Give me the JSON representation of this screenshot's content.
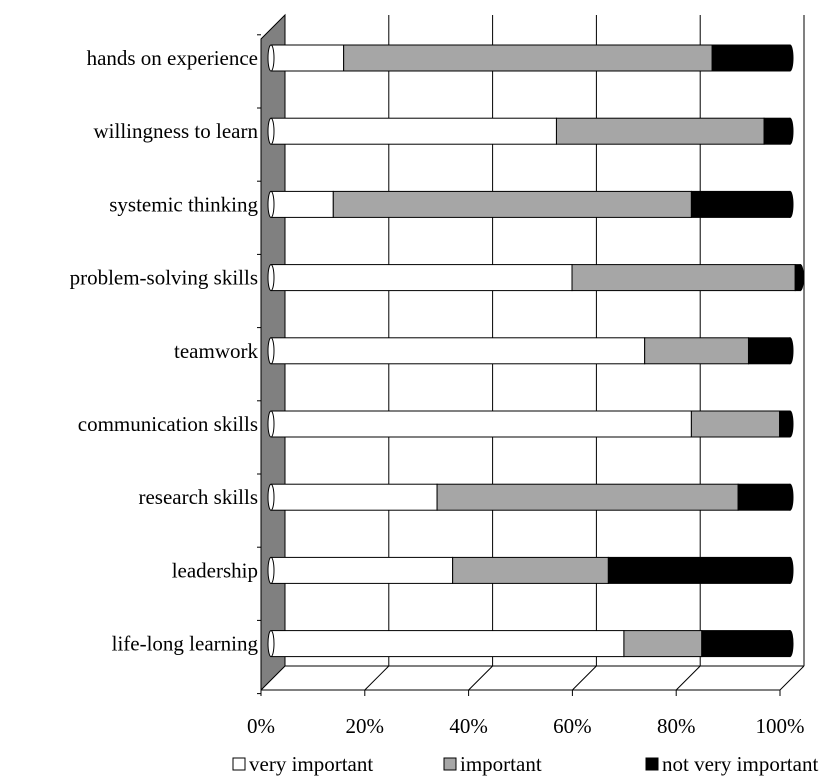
{
  "chart_data": {
    "type": "bar",
    "orientation": "horizontal",
    "stacked": true,
    "percent_stacked": true,
    "three_d": true,
    "categories": [
      "hands on experience",
      "willingness to learn",
      "systemic thinking",
      "problem-solving skills",
      "teamwork",
      "communication skills",
      "research skills",
      "leadership",
      "life-long learning"
    ],
    "series": [
      {
        "name": "very important",
        "color": "#ffffff",
        "values": [
          14,
          55,
          12,
          58,
          72,
          81,
          32,
          35,
          68
        ]
      },
      {
        "name": "important",
        "color": "#a6a6a6",
        "values": [
          71,
          40,
          69,
          43,
          20,
          17,
          58,
          30,
          15
        ]
      },
      {
        "name": "not very important",
        "color": "#000000",
        "values": [
          15,
          5,
          19,
          1,
          8,
          2,
          10,
          35,
          17
        ]
      }
    ],
    "xlim": [
      0,
      100
    ],
    "x_ticks": [
      "0%",
      "20%",
      "40%",
      "60%",
      "80%",
      "100%"
    ],
    "grid": true,
    "legend_position": "bottom"
  }
}
